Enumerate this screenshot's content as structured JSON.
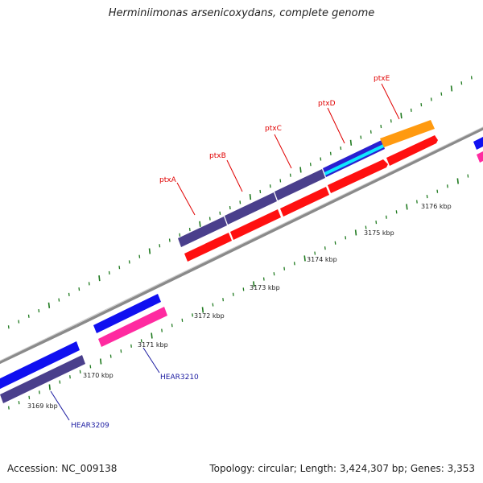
{
  "title": "Herminiimonas arsenicoxydans, complete genome",
  "footer": {
    "accession": "Accession: NC_009138",
    "stats": "Topology: circular; Length: 3,424,307 bp; Genes: 3,353"
  },
  "colors": {
    "backbone": "#8a8a8a",
    "tick": "#1f7a1f",
    "gene_purple": "#4a3f8c",
    "gene_red": "#ff1010",
    "gene_blue": "#1010f0",
    "gene_pink": "#ff2aa0",
    "gene_orange": "#ff9a10",
    "gene_cyan": "#10e8ff",
    "label_red": "#e00000",
    "label_blue": "#1a1aa0"
  },
  "scale_labels": [
    "3169 kbp",
    "3170 kbp",
    "3171 kbp",
    "3172 kbp",
    "3173 kbp",
    "3174 kbp",
    "3175 kbp",
    "3176 kbp"
  ],
  "gene_labels": [
    "ptxA",
    "ptxB",
    "ptxC",
    "ptxD",
    "ptxE"
  ],
  "locus_labels": [
    "HEAR3209",
    "HEAR3210"
  ]
}
